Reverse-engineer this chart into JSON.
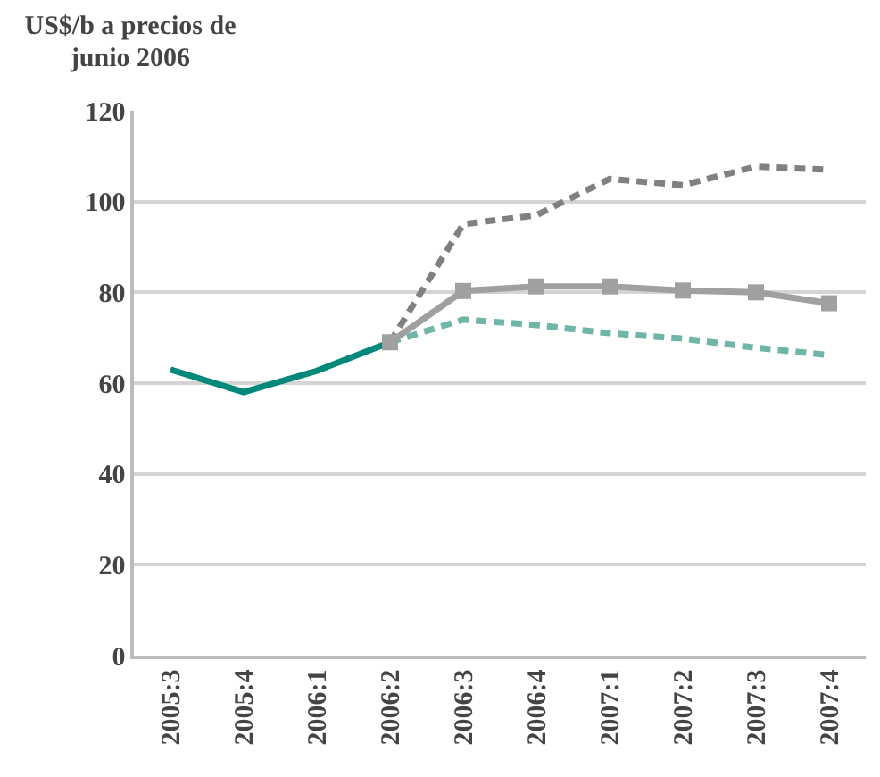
{
  "chart_data": {
    "type": "line",
    "ylabel": "US$/b a precios de junio 2006",
    "categories": [
      "2005:3",
      "2005:4",
      "2006:1",
      "2006:2",
      "2006:3",
      "2006:4",
      "2007:1",
      "2007:2",
      "2007:3",
      "2007:4"
    ],
    "series": [
      {
        "color": "#00897b",
        "line_style": "solid",
        "marker": "none",
        "values": [
          63,
          58,
          62.7,
          69,
          null,
          null,
          null,
          null,
          null,
          null
        ]
      },
      {
        "color": "#6fb5a8",
        "line_style": "dashed",
        "marker": "none",
        "values": [
          null,
          null,
          null,
          69,
          74,
          72.8,
          71,
          69.8,
          67.8,
          66.2
        ]
      },
      {
        "color": "#808080",
        "line_style": "dashed",
        "marker": "none",
        "values": [
          null,
          null,
          null,
          69,
          95,
          97,
          105,
          103.6,
          107.7,
          107
        ]
      },
      {
        "color": "#a0a0a0",
        "line_style": "solid",
        "marker": "square",
        "values": [
          null,
          null,
          null,
          69,
          80.3,
          81.3,
          81.3,
          80.4,
          80,
          77.6
        ]
      }
    ],
    "ylim": [
      0,
      120
    ],
    "yticks": [
      0,
      20,
      40,
      60,
      80,
      100,
      120
    ],
    "grid": "y"
  }
}
